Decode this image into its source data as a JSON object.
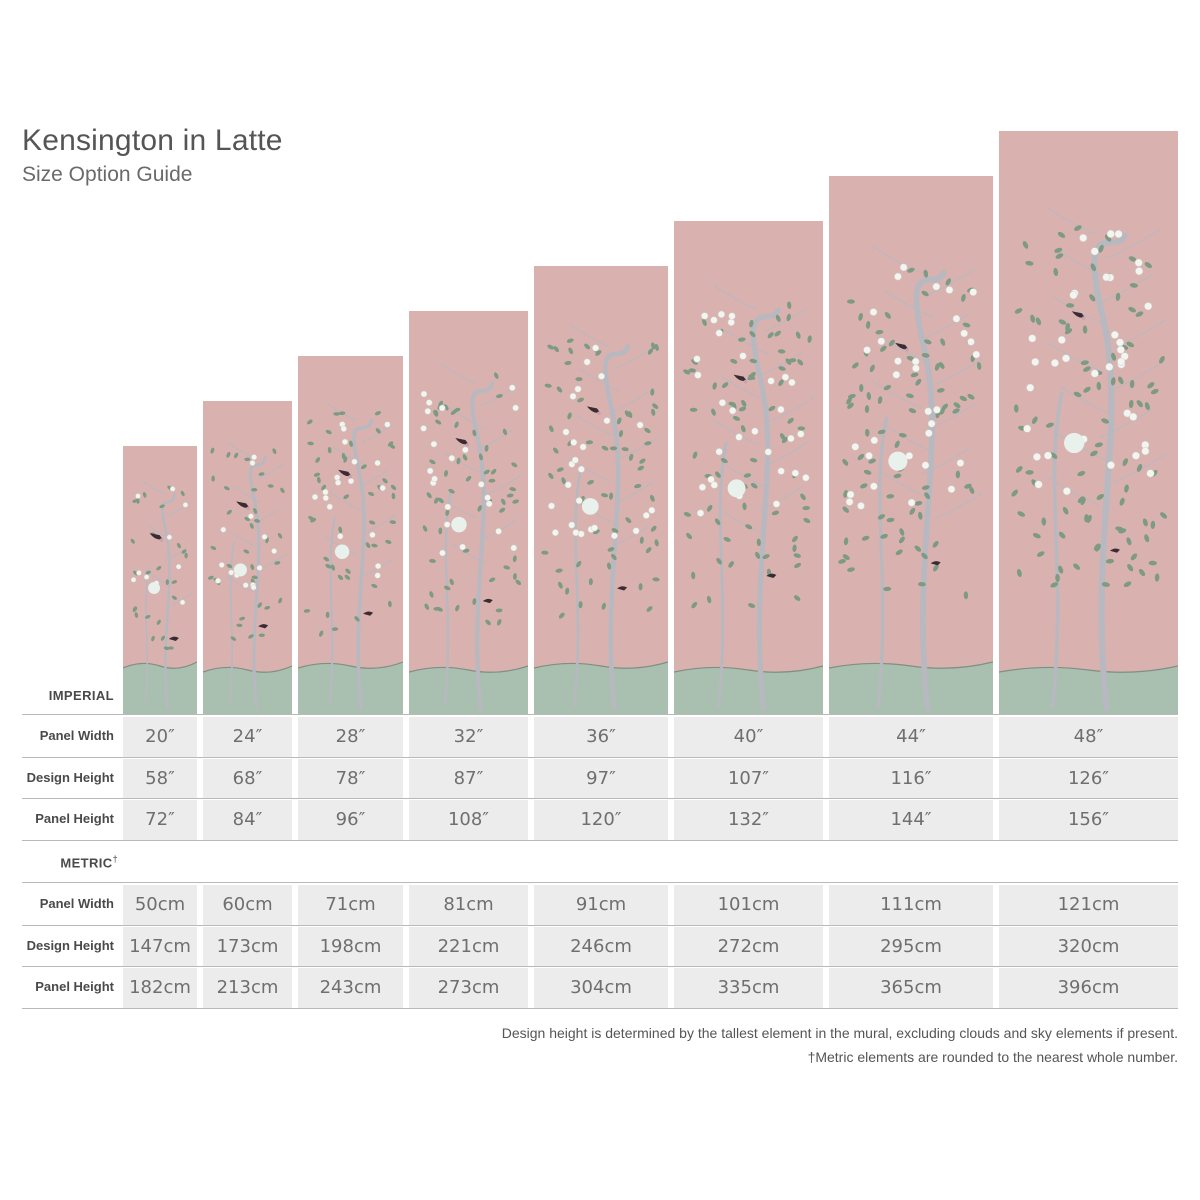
{
  "header": {
    "title": "Kensington in Latte",
    "subtitle": "Size Option Guide"
  },
  "colors": {
    "panel_background": "#d9b2b0",
    "ground": "#a9bfb0",
    "foliage": "#7d9a82",
    "blossom": "#f4f4f0",
    "trunk": "#b8b8c0",
    "table_cell": "#ececec",
    "rule": "#b9b9b9"
  },
  "mural": {
    "design_name": "Kensington",
    "colorway": "Latte",
    "panel_count": 8
  },
  "imperial": {
    "section_label": "IMPERIAL",
    "rows": [
      {
        "label": "Panel Width",
        "values": [
          "20″",
          "24″",
          "28″",
          "32″",
          "36″",
          "40″",
          "44″",
          "48″"
        ]
      },
      {
        "label": "Design Height",
        "values": [
          "58″",
          "68″",
          "78″",
          "87″",
          "97″",
          "107″",
          "116″",
          "126″"
        ]
      },
      {
        "label": "Panel Height",
        "values": [
          "72″",
          "84″",
          "96″",
          "108″",
          "120″",
          "132″",
          "144″",
          "156″"
        ]
      }
    ]
  },
  "metric": {
    "section_label": "METRIC",
    "section_mark": "†",
    "rows": [
      {
        "label": "Panel Width",
        "values": [
          "50cm",
          "60cm",
          "71cm",
          "81cm",
          "91cm",
          "101cm",
          "111cm",
          "121cm"
        ]
      },
      {
        "label": "Design Height",
        "values": [
          "147cm",
          "173cm",
          "198cm",
          "221cm",
          "246cm",
          "272cm",
          "295cm",
          "320cm"
        ]
      },
      {
        "label": "Panel Height",
        "values": [
          "182cm",
          "213cm",
          "243cm",
          "273cm",
          "304cm",
          "335cm",
          "365cm",
          "396cm"
        ]
      }
    ]
  },
  "footnotes": {
    "design_height": "Design height is determined by the tallest element in the mural, excluding clouds and sky elements if present.",
    "metric": "†Metric elements are rounded to the nearest whole number."
  }
}
